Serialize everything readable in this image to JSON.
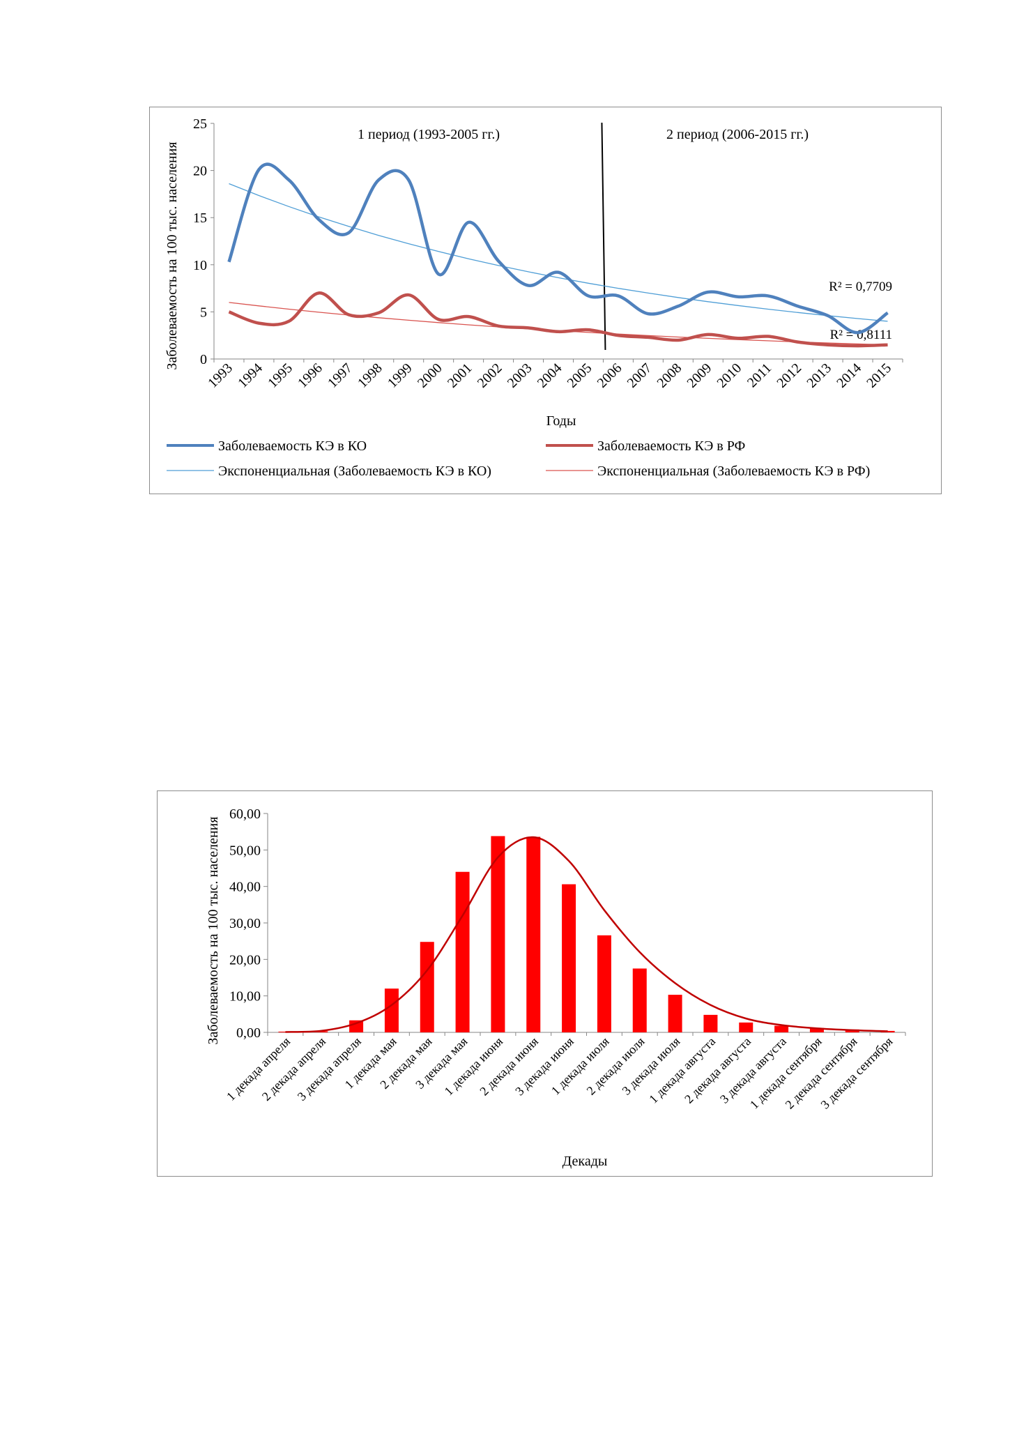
{
  "chart_data": [
    {
      "type": "line",
      "title": "",
      "xlabel": "Годы",
      "ylabel": "Заболеваемость на 100 тыс. населения",
      "ylim": [
        0,
        25
      ],
      "yticks": [
        "0",
        "5",
        "10",
        "15",
        "20",
        "25"
      ],
      "x": [
        "1993",
        "1994",
        "1995",
        "1996",
        "1997",
        "1998",
        "1999",
        "2000",
        "2001",
        "2002",
        "2003",
        "2004",
        "2005",
        "2006",
        "2007",
        "2008",
        "2009",
        "2010",
        "2011",
        "2012",
        "2013",
        "2014",
        "2015"
      ],
      "series": [
        {
          "name": "Заболеваемость КЭ в КО",
          "color": "#4f81bd",
          "values": [
            10.3,
            20.1,
            19.0,
            14.8,
            13.4,
            19.0,
            19.0,
            9.0,
            14.5,
            10.4,
            7.8,
            9.2,
            6.7,
            6.7,
            4.8,
            5.6,
            7.1,
            6.6,
            6.7,
            5.6,
            4.6,
            2.8,
            4.9
          ]
        },
        {
          "name": "Заболеваемость КЭ в РФ",
          "color": "#c0504d",
          "values": [
            5.0,
            3.8,
            4.0,
            7.0,
            4.7,
            4.9,
            6.8,
            4.2,
            4.5,
            3.5,
            3.3,
            2.9,
            3.1,
            2.5,
            2.3,
            2.0,
            2.6,
            2.2,
            2.4,
            1.8,
            1.5,
            1.4,
            1.5
          ]
        }
      ],
      "trendlines": [
        {
          "name": "Экспоненциальная (Заболеваемость КЭ в КО)",
          "color": "#4f9ed6",
          "start": 18.6,
          "end": 4.0,
          "r2": "R² = 0,7709"
        },
        {
          "name": "Экспоненциальная (Заболеваемость КЭ в РФ)",
          "color": "#d9534f",
          "start": 6.0,
          "end": 1.5,
          "r2": "R² = 0,8111"
        }
      ],
      "period_divider_after": "2005",
      "annotations": [
        "1 период (1993-2005  гг.)",
        "2 период (2006-2015  гг.)"
      ],
      "legend": "bottom",
      "grid": false
    },
    {
      "type": "bar",
      "title": "",
      "xlabel": "Декады",
      "ylabel": "Заболеваемость на 100 тыс. населения",
      "ylim": [
        0,
        60
      ],
      "yticks": [
        "0,00",
        "10,00",
        "20,00",
        "30,00",
        "40,00",
        "50,00",
        "60,00"
      ],
      "categories": [
        "1 декада апреля",
        "2 декада апреля",
        "3 декада апреля",
        "1 декада мая",
        "2 декада мая",
        "3 декада мая",
        "1 декада июня",
        "2 декада июня",
        "3 декада июня",
        "1 декада июля",
        "2 декада июля",
        "3 декада июля",
        "1 декада августа",
        "2 декада августа",
        "3 декада августа",
        "1 декада сентября",
        "2 декада сентября",
        "3 декада сентября"
      ],
      "values": [
        0.2,
        0.3,
        3.3,
        12.0,
        24.8,
        44.0,
        53.8,
        53.6,
        40.6,
        26.6,
        17.5,
        10.3,
        4.8,
        2.7,
        1.8,
        1.2,
        0.8,
        0.4
      ],
      "curve_values": [
        0.1,
        0.4,
        2.5,
        7.5,
        17.0,
        32.0,
        48.0,
        53.5,
        47.0,
        33.5,
        22.0,
        13.5,
        7.5,
        3.8,
        2.0,
        1.1,
        0.6,
        0.3
      ],
      "bar_color": "#ff0000",
      "curve_color": "#c00000",
      "legend": "none",
      "grid": false
    }
  ]
}
